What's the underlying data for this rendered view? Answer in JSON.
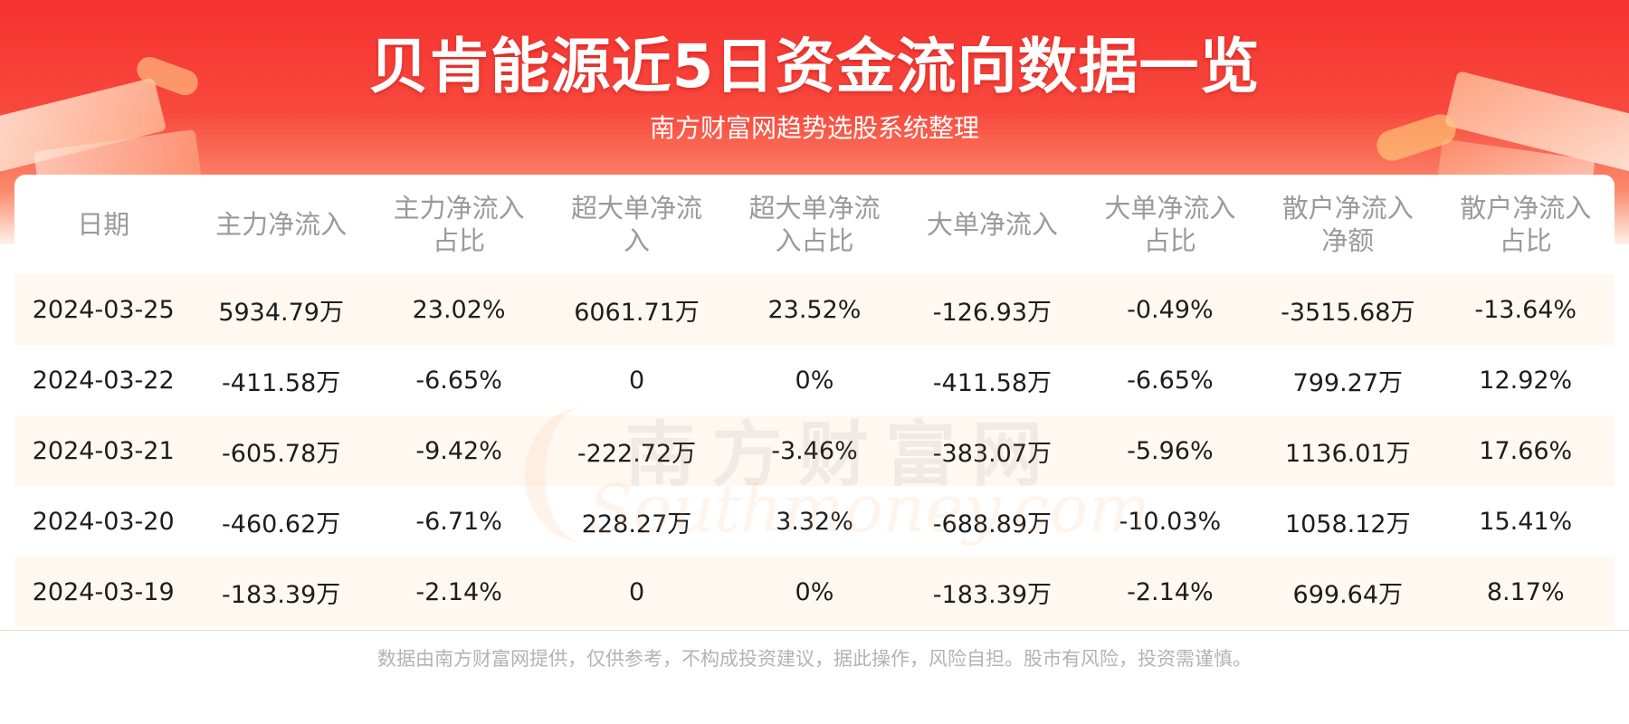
{
  "header": {
    "title": "贝肯能源近5日资金流向数据一览",
    "subtitle": "南方财富网趋势选股系统整理"
  },
  "table": {
    "columns": [
      [
        "日期"
      ],
      [
        "主力净流入"
      ],
      [
        "主力净流入",
        "占比"
      ],
      [
        "超大单净流",
        "入"
      ],
      [
        "超大单净流",
        "入占比"
      ],
      [
        "大单净流入"
      ],
      [
        "大单净流入",
        "占比"
      ],
      [
        "散户净流入",
        "净额"
      ],
      [
        "散户净流入",
        "占比"
      ]
    ],
    "rows": [
      [
        "2024-03-25",
        "5934.79万",
        "23.02%",
        "6061.71万",
        "23.52%",
        "-126.93万",
        "-0.49%",
        "-3515.68万",
        "-13.64%"
      ],
      [
        "2024-03-22",
        "-411.58万",
        "-6.65%",
        "0",
        "0%",
        "-411.58万",
        "-6.65%",
        "799.27万",
        "12.92%"
      ],
      [
        "2024-03-21",
        "-605.78万",
        "-9.42%",
        "-222.72万",
        "-3.46%",
        "-383.07万",
        "-5.96%",
        "1136.01万",
        "17.66%"
      ],
      [
        "2024-03-20",
        "-460.62万",
        "-6.71%",
        "228.27万",
        "3.32%",
        "-688.89万",
        "-10.03%",
        "1058.12万",
        "15.41%"
      ],
      [
        "2024-03-19",
        "-183.39万",
        "-2.14%",
        "0",
        "0%",
        "-183.39万",
        "-2.14%",
        "699.64万",
        "8.17%"
      ]
    ]
  },
  "watermark": {
    "cn": "南方财富网",
    "en": "Southmoney.com"
  },
  "footer": {
    "disclaimer": "数据由南方财富网提供，仅供参考，不构成投资建议，据此操作，风险自担。股市有风险，投资需谨慎。"
  },
  "colors": {
    "banner_red": "#f5322f",
    "header_text": "#9a9a9a",
    "row_stripe": "#fff8f1"
  }
}
